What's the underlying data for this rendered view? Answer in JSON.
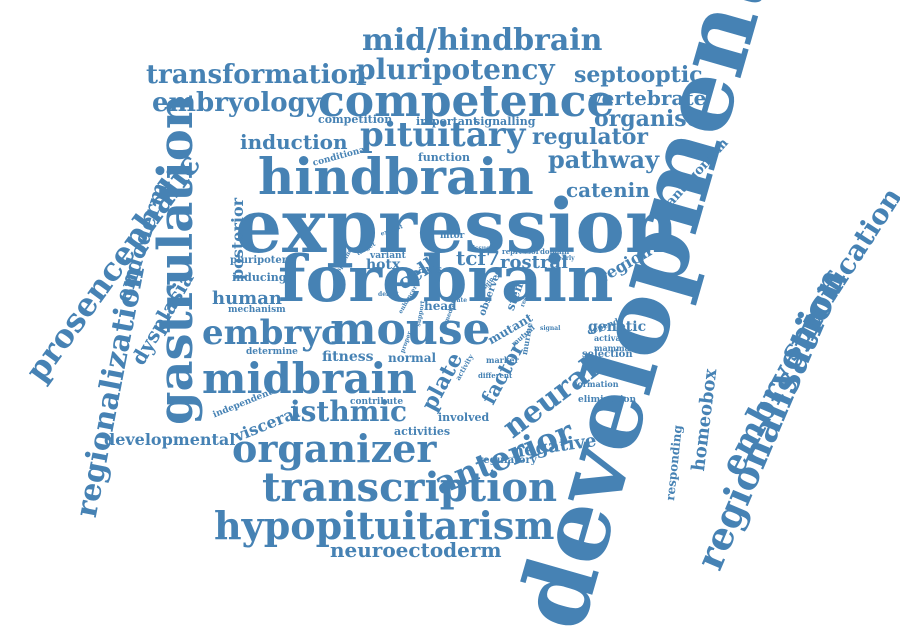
{
  "cloud": {
    "color": "#4682b4",
    "words": [
      "development",
      "expression",
      "forebrain",
      "hindbrain",
      "mouse",
      "competence",
      "gastrulation",
      "midbrain",
      "transcription",
      "hypopituitarism",
      "organizer",
      "regionalisation",
      "pituitary",
      "mid/hindbrain",
      "pluripotency",
      "transformation",
      "embryology",
      "embryo",
      "prosencephalic",
      "regionalization",
      "embryonic",
      "anterior",
      "neural",
      "isthmic",
      "specification",
      "neuroectoderm",
      "septooptic",
      "vertebrate",
      "organiser",
      "regulator",
      "pathway",
      "catenin",
      "induction",
      "endoderm",
      "dysplasia",
      "posterior",
      "developmental",
      "visceral",
      "plate",
      "homeobox",
      "responding",
      "negative",
      "factor",
      "tcf7",
      "rostral",
      "cell",
      "hotx",
      "human",
      "fitness",
      "normal",
      "region",
      "genetic",
      "antagonism",
      "competition",
      "important",
      "signalling",
      "mechanism",
      "inducing",
      "pluripotent",
      "variant",
      "axis",
      "head",
      "determine",
      "independent",
      "contribute",
      "involved",
      "activities",
      "regulatory",
      "mutant",
      "observed",
      "stem",
      "elimination",
      "selection",
      "formation",
      "activation",
      "mammal",
      "conditional",
      "function",
      "mtor",
      "repressor",
      "domain",
      "depend",
      "target",
      "exhibit",
      "specific",
      "signal",
      "marker",
      "murine",
      "different",
      "mutual",
      "activity",
      "defect",
      "enhancer",
      "support",
      "proper",
      "tissue",
      "origin",
      "mediated",
      "fate",
      "restrict",
      "early"
    ]
  }
}
